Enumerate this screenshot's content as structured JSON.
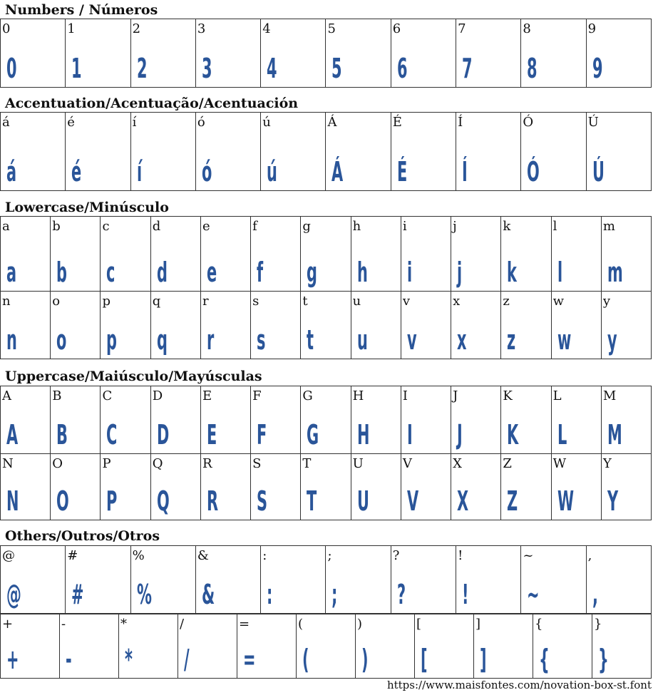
{
  "sections": [
    {
      "title": "Numbers / Números",
      "rows": [
        [
          "0",
          "1",
          "2",
          "3",
          "4",
          "5",
          "6",
          "7",
          "8",
          "9"
        ]
      ]
    },
    {
      "title": "Accentuation/Acentuação/Acentuación",
      "rows": [
        [
          "á",
          "é",
          "í",
          "ó",
          "ú",
          "Á",
          "É",
          "Í",
          "Ó",
          "Ú"
        ]
      ]
    },
    {
      "title": "Lowercase/Minúsculo",
      "rows": [
        [
          "a",
          "b",
          "c",
          "d",
          "e",
          "f",
          "g",
          "h",
          "i",
          "j",
          "k",
          "l",
          "m"
        ],
        [
          "n",
          "o",
          "p",
          "q",
          "r",
          "s",
          "t",
          "u",
          "v",
          "x",
          "z",
          "w",
          "y"
        ]
      ]
    },
    {
      "title": "Uppercase/Maiúsculo/Mayúsculas",
      "rows": [
        [
          "A",
          "B",
          "C",
          "D",
          "E",
          "F",
          "G",
          "H",
          "I",
          "J",
          "K",
          "L",
          "M"
        ],
        [
          "N",
          "O",
          "P",
          "Q",
          "R",
          "S",
          "T",
          "U",
          "V",
          "X",
          "Z",
          "W",
          "Y"
        ]
      ]
    },
    {
      "title": "Others/Outros/Otros",
      "rows": [
        [
          "@",
          "#",
          "%",
          "&",
          ":",
          ";",
          "?",
          "!",
          "~",
          ","
        ],
        [
          "+",
          "-",
          "*",
          "/",
          "=",
          "(",
          ")",
          "[",
          "]",
          "{",
          "}"
        ]
      ]
    }
  ],
  "footer": "https://www.maisfontes.com/novation-box-st.font",
  "colors": {
    "glyph": "#2a5599",
    "border": "#333333"
  }
}
